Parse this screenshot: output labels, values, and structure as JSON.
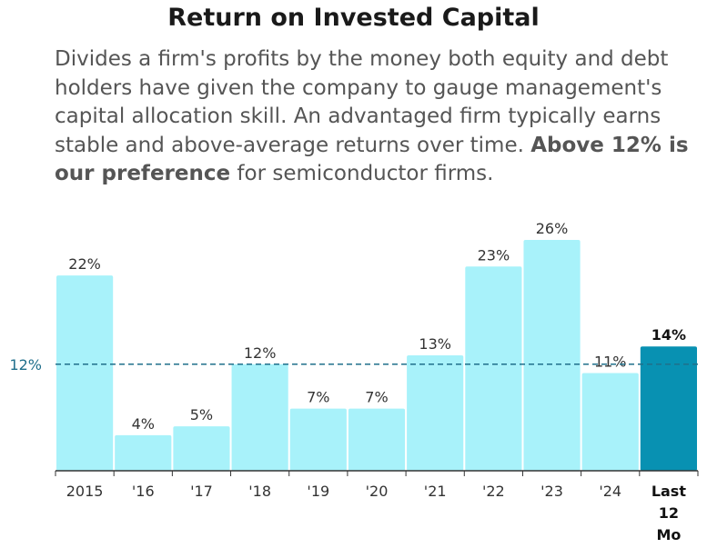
{
  "chart_data": {
    "type": "bar",
    "title": "Return on Invested Capital",
    "subtitle": {
      "part1": "Divides a firm's profits by the money both equity and debt holders have given the company to gauge management's capital allocation skill. An advantaged firm typically earns stable and above-average returns over time. ",
      "bold": "Above 12% is our preference",
      "part2": " for semiconductor firms."
    },
    "categories": [
      "2015",
      "'16",
      "'17",
      "'18",
      "'19",
      "'20",
      "'21",
      "'22",
      "'23",
      "'24",
      "Last 12 Mo"
    ],
    "values": [
      22,
      4,
      5,
      12,
      7,
      7,
      13,
      23,
      26,
      11,
      14
    ],
    "value_labels": [
      "22%",
      "4%",
      "5%",
      "12%",
      "7%",
      "7%",
      "13%",
      "23%",
      "26%",
      "11%",
      "14%"
    ],
    "highlight_index": 10,
    "reference_line": {
      "value": 12,
      "label": "12%"
    },
    "ylim": [
      0,
      26
    ],
    "grid": false,
    "colors": {
      "bar": "#a8f2fa",
      "bar_highlight": "#0891b2",
      "reference": "#1f6f8b",
      "axis": "#333333"
    }
  }
}
